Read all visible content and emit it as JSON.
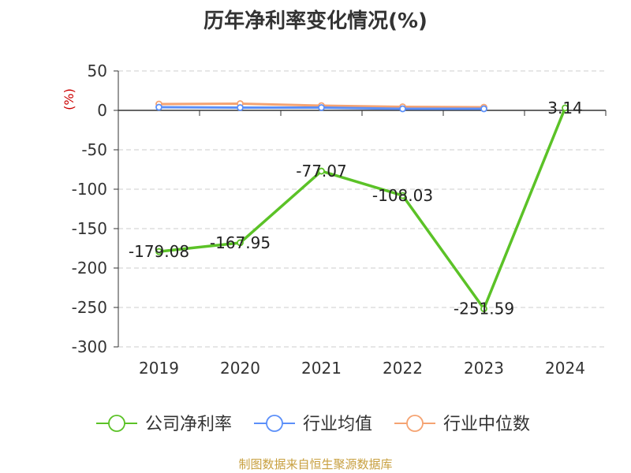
{
  "chart_data": {
    "type": "line",
    "title": "历年净利率变化情况(%)",
    "ylabel": "(%)",
    "categories": [
      "2019",
      "2020",
      "2021",
      "2022",
      "2023",
      "2024"
    ],
    "ylim": [
      -300,
      50
    ],
    "yticks": [
      50,
      0,
      -50,
      -100,
      -150,
      -200,
      -250,
      -300
    ],
    "grid": true,
    "legend_position": "bottom",
    "series": [
      {
        "name": "公司净利率",
        "color": "#5bc227",
        "values": [
          -179.08,
          -167.95,
          -77.07,
          -108.03,
          -251.59,
          3.14
        ],
        "labels": [
          "-179.08",
          "-167.95",
          "-77.07",
          "-108.03",
          "-251.59",
          "3.14"
        ]
      },
      {
        "name": "行业均值",
        "color": "#5b8ff9",
        "values": [
          4.0,
          3.5,
          3.5,
          2.0,
          2.0,
          null
        ]
      },
      {
        "name": "行业中位数",
        "color": "#f5a372",
        "values": [
          8.0,
          8.5,
          6.0,
          4.5,
          4.0,
          null
        ]
      }
    ]
  },
  "source_text": "制图数据来自恒生聚源数据库"
}
